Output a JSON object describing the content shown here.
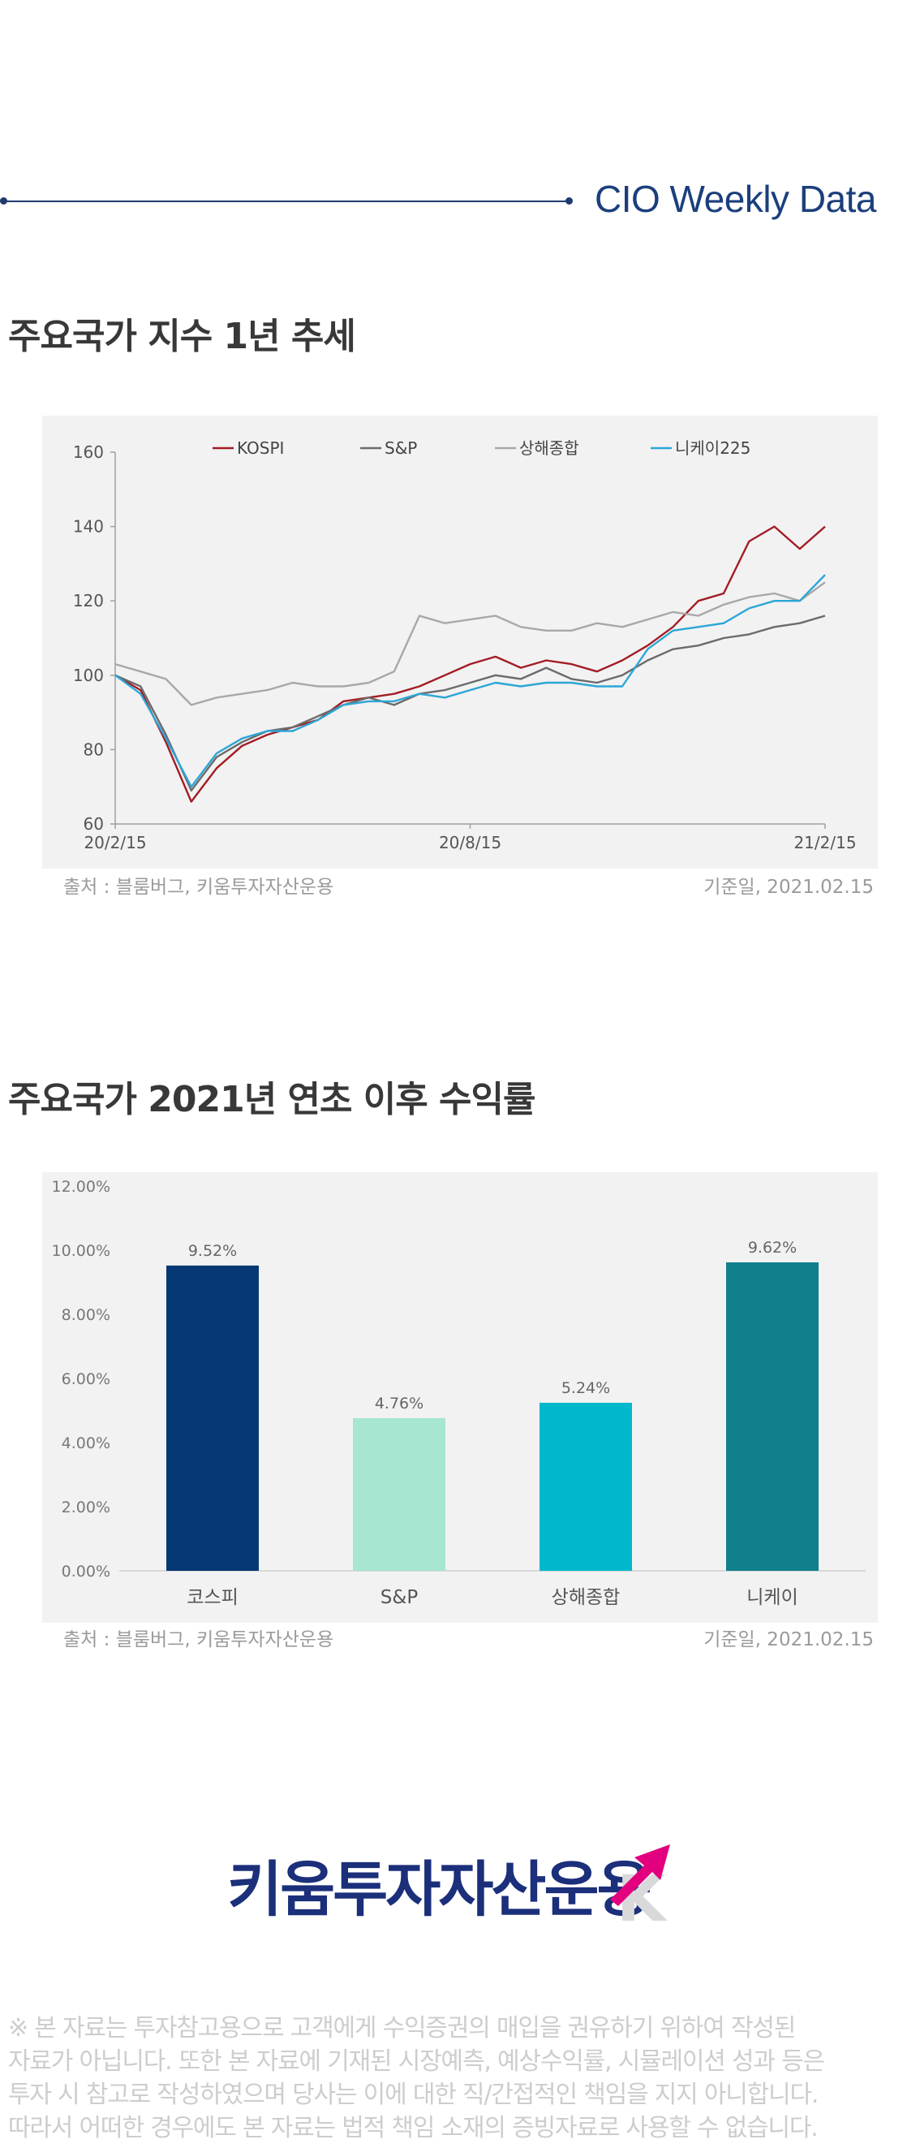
{
  "header": {
    "title": "CIO Weekly Data"
  },
  "sections": [
    {
      "title": "주요국가 지수 1년 추세"
    },
    {
      "title": "주요국가 2021년 연초 이후 수익률"
    }
  ],
  "notes": {
    "source": "출처 : 블룸버그, 키움투자자산운용",
    "base_date": "기준일, 2021.02.15"
  },
  "chart_data": [
    {
      "type": "line",
      "x_tick_labels": [
        "20/2/15",
        "20/8/15",
        "21/2/15"
      ],
      "y_tick_labels": [
        "60",
        "80",
        "100",
        "120",
        "140",
        "160"
      ],
      "ylim": [
        60,
        160
      ],
      "legend_position": "top",
      "x": [
        "20/2/15",
        "20/2/28",
        "20/3/10",
        "20/3/20",
        "20/3/31",
        "20/4/10",
        "20/4/20",
        "20/4/30",
        "20/5/15",
        "20/5/30",
        "20/6/15",
        "20/6/30",
        "20/7/10",
        "20/7/20",
        "20/7/31",
        "20/8/15",
        "20/8/31",
        "20/9/15",
        "20/9/30",
        "20/10/15",
        "20/10/31",
        "20/11/15",
        "20/11/30",
        "20/12/15",
        "20/12/31",
        "21/1/10",
        "21/1/20",
        "21/1/31",
        "21/2/15"
      ],
      "series": [
        {
          "name": "KOSPI",
          "color": "#a31c24",
          "values": [
            100,
            96,
            82,
            66,
            75,
            81,
            84,
            86,
            88,
            93,
            94,
            95,
            97,
            100,
            103,
            105,
            102,
            104,
            103,
            101,
            104,
            108,
            113,
            120,
            122,
            136,
            140,
            134,
            140
          ]
        },
        {
          "name": "S&P",
          "color": "#6b6b6b",
          "values": [
            100,
            97,
            84,
            69,
            78,
            82,
            85,
            86,
            89,
            92,
            94,
            92,
            95,
            96,
            98,
            100,
            99,
            102,
            99,
            98,
            100,
            104,
            107,
            108,
            110,
            111,
            113,
            114,
            116
          ]
        },
        {
          "name": "상해종합",
          "color": "#a8a8a8",
          "values": [
            103,
            101,
            99,
            92,
            94,
            95,
            96,
            98,
            97,
            97,
            98,
            101,
            116,
            114,
            115,
            116,
            113,
            112,
            112,
            114,
            113,
            115,
            117,
            116,
            119,
            121,
            122,
            120,
            125
          ]
        },
        {
          "name": "니케이225",
          "color": "#2ca6d6",
          "values": [
            100,
            95,
            83,
            70,
            79,
            83,
            85,
            85,
            88,
            92,
            93,
            93,
            95,
            94,
            96,
            98,
            97,
            98,
            98,
            97,
            97,
            107,
            112,
            113,
            114,
            118,
            120,
            120,
            127
          ]
        }
      ]
    },
    {
      "type": "bar",
      "categories": [
        "코스피",
        "S&P",
        "상해종합",
        "니케이"
      ],
      "values": [
        9.52,
        4.76,
        5.24,
        9.62
      ],
      "value_labels": [
        "9.52%",
        "4.76%",
        "5.24%",
        "9.62%"
      ],
      "y_tick_labels": [
        "0.00%",
        "2.00%",
        "4.00%",
        "6.00%",
        "8.00%",
        "10.00%",
        "12.00%"
      ],
      "ylim": [
        0,
        12
      ],
      "colors": [
        "#063873",
        "#a7e6d0",
        "#00b8cc",
        "#10808c"
      ]
    }
  ],
  "logo": {
    "text": "키움투자자산운용",
    "mark_letter": "K"
  },
  "disclaimer": [
    "※ 본 자료는 투자참고용으로 고객에게 수익증권의 매입을 권유하기 위하여 작성된",
    "자료가 아닙니다. 또한 본 자료에 기재된 시장예측, 예상수익률, 시뮬레이션 성과 등은",
    "투자 시 참고로 작성하였으며 당사는 이에 대한 직/간접적인 책임을 지지 아니합니다.",
    "따라서 어떠한 경우에도 본 자료는 법적 책임 소재의 증빙자료로 사용할 수 없습니다."
  ]
}
